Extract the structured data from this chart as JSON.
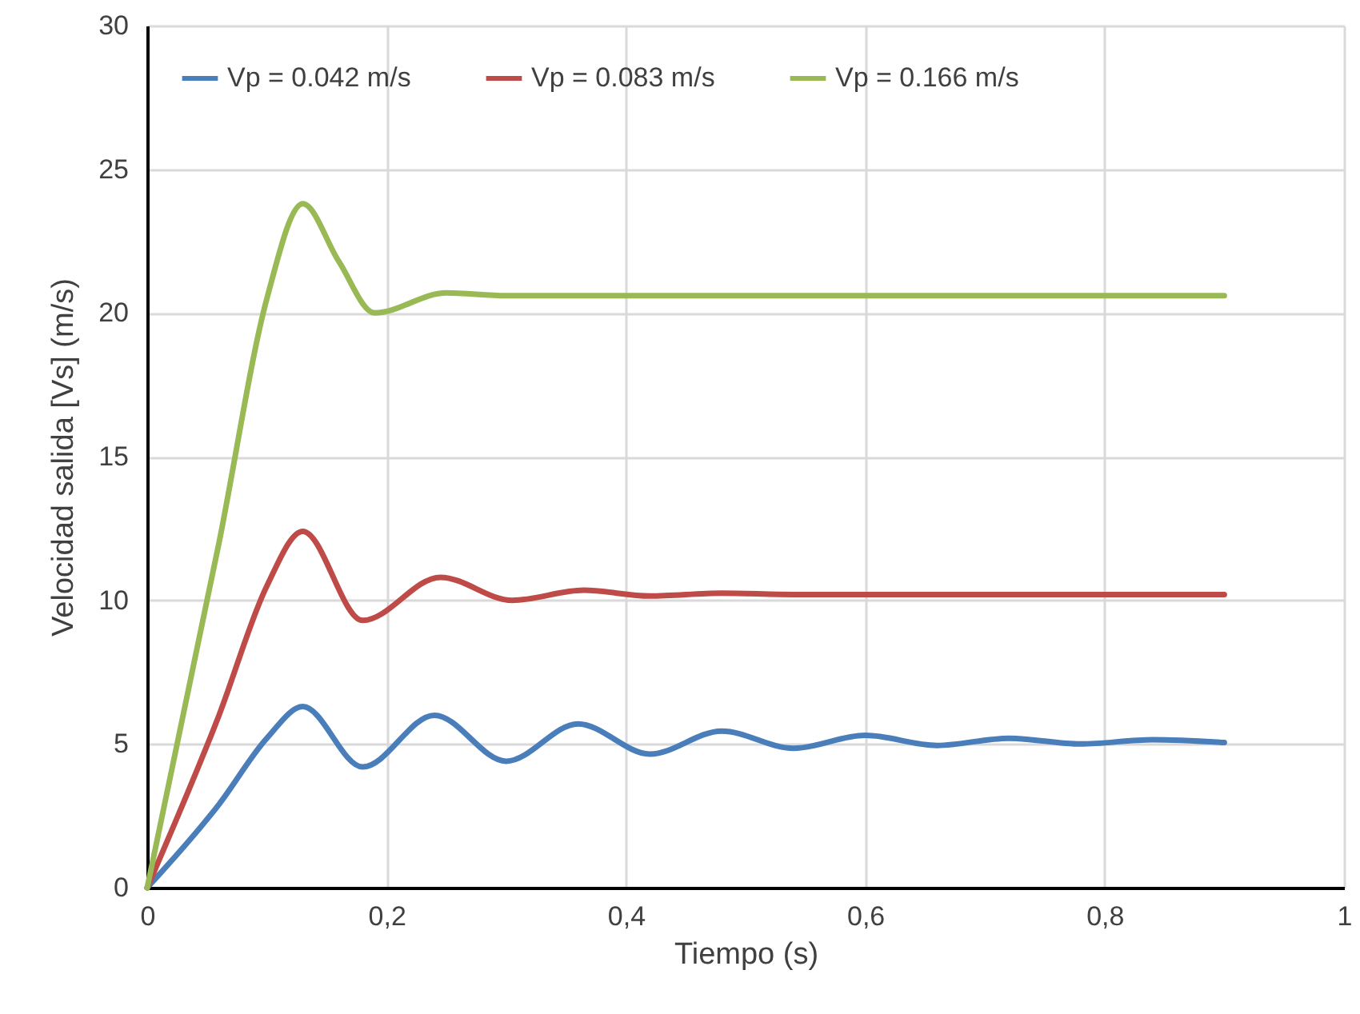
{
  "chart_data": {
    "type": "line",
    "xlabel": "Tiempo (s)",
    "ylabel": "Velocidad salida [Vs] (m/s)",
    "xlim": [
      0,
      1
    ],
    "ylim": [
      0,
      30
    ],
    "xticks": [
      0,
      {
        "value": 0.2,
        "label": "0,2"
      },
      {
        "value": 0.4,
        "label": "0,4"
      },
      {
        "value": 0.6,
        "label": "0,6"
      },
      {
        "value": 0.8,
        "label": "0,8"
      },
      1
    ],
    "yticks": [
      0,
      5,
      10,
      15,
      20,
      25,
      30
    ],
    "grid": true,
    "legend": "top",
    "line_style": "solid",
    "marker": "none",
    "series": [
      {
        "name": "Vp = 0.042 m/s",
        "color": "#4a7ebb",
        "x": [
          0,
          0.06,
          0.1,
          0.13,
          0.18,
          0.24,
          0.3,
          0.36,
          0.42,
          0.48,
          0.54,
          0.6,
          0.66,
          0.72,
          0.78,
          0.84,
          0.9
        ],
        "values": [
          0,
          2.9,
          5.2,
          6.3,
          4.2,
          6.0,
          4.4,
          5.7,
          4.65,
          5.45,
          4.85,
          5.3,
          4.95,
          5.2,
          5.0,
          5.15,
          5.05
        ]
      },
      {
        "name": "Vp = 0.083 m/s",
        "color": "#be4b48",
        "x": [
          0,
          0.06,
          0.1,
          0.13,
          0.18,
          0.245,
          0.305,
          0.365,
          0.42,
          0.48,
          0.54,
          0.9
        ],
        "values": [
          0,
          6,
          10.5,
          12.4,
          9.3,
          10.8,
          10.0,
          10.35,
          10.15,
          10.25,
          10.2,
          10.2
        ]
      },
      {
        "name": "Vp = 0.166 m/s",
        "color": "#98b954",
        "x": [
          0,
          0.06,
          0.1,
          0.13,
          0.16,
          0.19,
          0.25,
          0.3,
          0.9
        ],
        "values": [
          0,
          12,
          20.5,
          23.8,
          21.8,
          20.0,
          20.7,
          20.6,
          20.6
        ]
      }
    ]
  }
}
